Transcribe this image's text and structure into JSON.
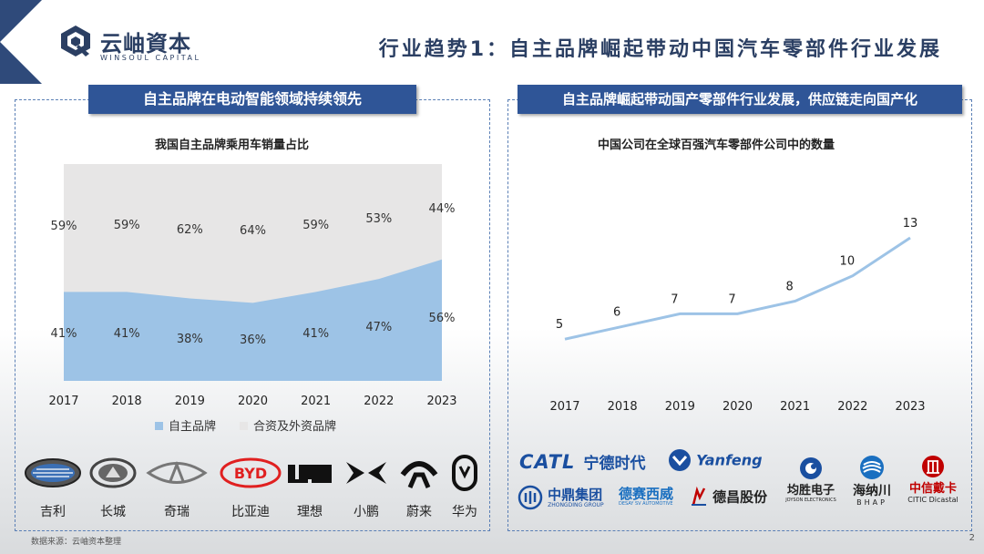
{
  "header": {
    "logo_cn": "云岫資本",
    "logo_en": "WINSOUL CAPITAL",
    "title": "行业趋势1：自主品牌崛起带动中国汽车零部件行业发展"
  },
  "left_panel": {
    "heading": "自主品牌在电动智能领域持续领先",
    "brands": [
      "吉利",
      "长城",
      "奇瑞",
      "比亚迪",
      "理想",
      "小鹏",
      "蔚来",
      "华为"
    ]
  },
  "right_panel": {
    "heading": "自主品牌崛起带动国产零部件行业发展，供应链走向国产化",
    "suppliers": {
      "catl_en": "CATL",
      "catl_cn": "宁德时代",
      "yanfeng": "Yanfeng",
      "zhongding_cn": "中鼎集团",
      "zhongding_en": "ZHONGDING GROUP",
      "desay_cn": "德赛西威",
      "desay_en": "DESAY SV AUTOMOTIVE",
      "dechang": "德昌股份",
      "joyson_cn": "均胜电子",
      "joyson_en": "JOYSON ELECTRONICS",
      "bhap_cn": "海纳川",
      "bhap_en": "BHAP",
      "citic_cn": "中信戴卡",
      "citic_en": "CITIC Dicastal"
    }
  },
  "footer": {
    "source": "数据来源：云岫资本整理",
    "page": "2"
  },
  "chart_data": [
    {
      "type": "area",
      "title": "我国自主品牌乘用车销量占比",
      "categories": [
        "2017",
        "2018",
        "2019",
        "2020",
        "2021",
        "2022",
        "2023"
      ],
      "series": [
        {
          "name": "自主品牌",
          "values": [
            41,
            41,
            38,
            36,
            41,
            47,
            56
          ],
          "labels": [
            "41%",
            "41%",
            "38%",
            "36%",
            "41%",
            "47%",
            "56%"
          ],
          "color": "#9dc3e6"
        },
        {
          "name": "合资及外资品牌",
          "values": [
            59,
            59,
            62,
            64,
            59,
            53,
            44
          ],
          "labels": [
            "59%",
            "59%",
            "62%",
            "64%",
            "59%",
            "53%",
            "44%"
          ],
          "color": "#e7e6e6"
        }
      ],
      "stacked": true,
      "ylim": [
        0,
        100
      ],
      "legend": "bottom"
    },
    {
      "type": "line",
      "title": "中国公司在全球百强汽车零部件公司中的数量",
      "categories": [
        "2017",
        "2018",
        "2019",
        "2020",
        "2021",
        "2022",
        "2023"
      ],
      "values": [
        5,
        6,
        7,
        7,
        8,
        10,
        13
      ],
      "color": "#9dc3e6",
      "data_labels": true
    }
  ]
}
